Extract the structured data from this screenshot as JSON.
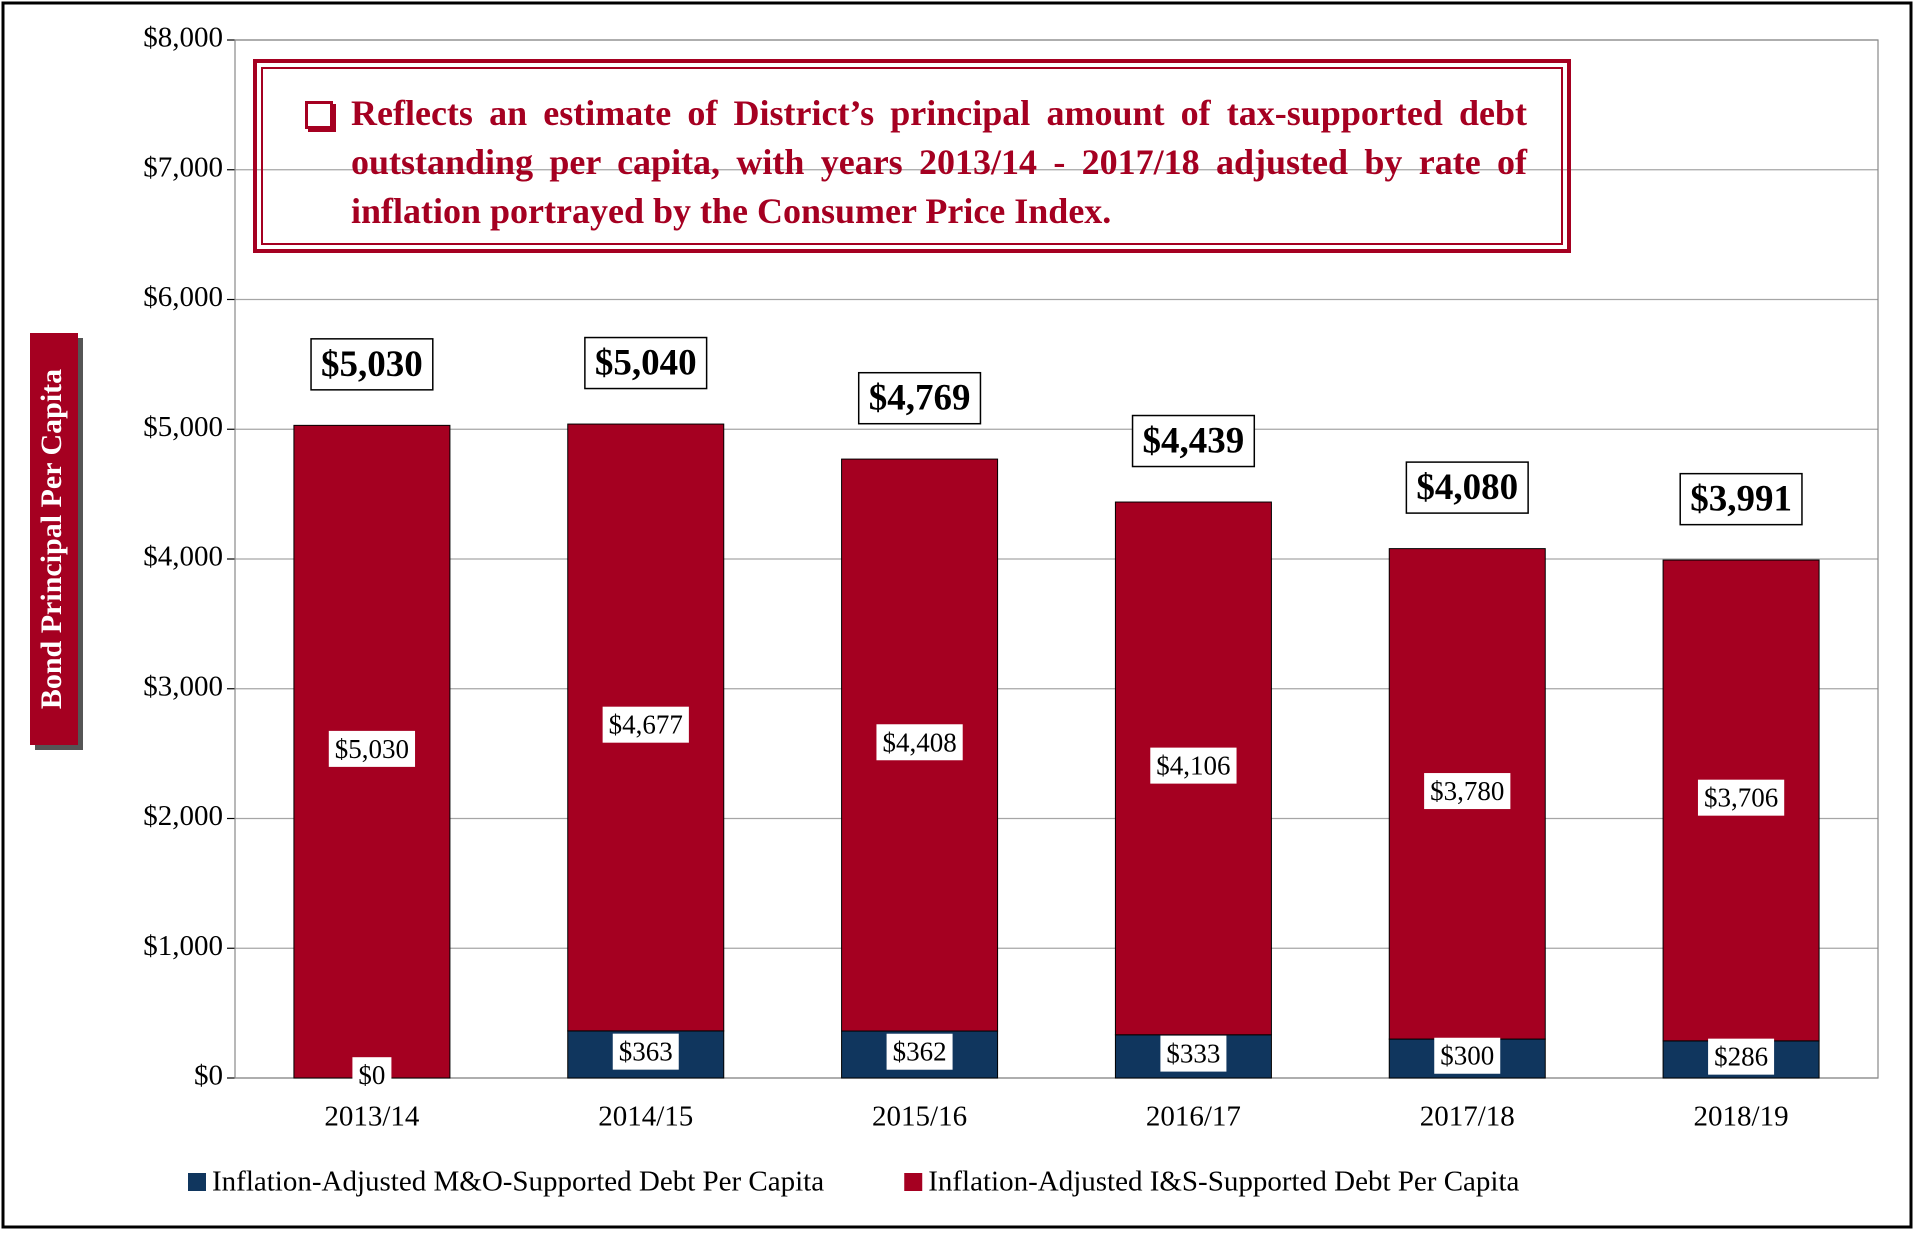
{
  "chart_data": {
    "type": "stacked_bar",
    "y_axis_label": "Bond Principal Per Capita",
    "annotation": "Reflects an estimate of District’s principal amount of tax-supported debt outstanding per capita, with years 2013/14 - 2017/18 adjusted by rate of inflation portrayed by the Consumer Price Index.",
    "categories": [
      "2013/14",
      "2014/15",
      "2015/16",
      "2016/17",
      "2017/18",
      "2018/19"
    ],
    "series": [
      {
        "name": "Inflation-Adjusted M&O-Supported Debt Per Capita",
        "color": "#10365e",
        "values": [
          0,
          363,
          362,
          333,
          300,
          286
        ],
        "value_labels": [
          "$0",
          "$363",
          "$362",
          "$333",
          "$300",
          "$286"
        ]
      },
      {
        "name": "Inflation-Adjusted I&S-Supported Debt Per Capita",
        "color": "#a50021",
        "values": [
          5030,
          4677,
          4408,
          4106,
          3780,
          3706
        ],
        "value_labels": [
          "$5,030",
          "$4,677",
          "$4,408",
          "$4,106",
          "$3,780",
          "$3,706"
        ]
      }
    ],
    "totals": [
      5030,
      5040,
      4769,
      4439,
      4080,
      3991
    ],
    "total_labels": [
      "$5,030",
      "$5,040",
      "$4,769",
      "$4,439",
      "$4,080",
      "$3,991"
    ],
    "ylim": [
      0,
      8000
    ],
    "yticks": [
      {
        "value": 0,
        "label": "$0"
      },
      {
        "value": 1000,
        "label": "$1,000"
      },
      {
        "value": 2000,
        "label": "$2,000"
      },
      {
        "value": 3000,
        "label": "$3,000"
      },
      {
        "value": 4000,
        "label": "$4,000"
      },
      {
        "value": 5000,
        "label": "$5,000"
      },
      {
        "value": 6000,
        "label": "$6,000"
      },
      {
        "value": 7000,
        "label": "$7,000"
      },
      {
        "value": 8000,
        "label": "$8,000"
      }
    ],
    "grid": true
  }
}
